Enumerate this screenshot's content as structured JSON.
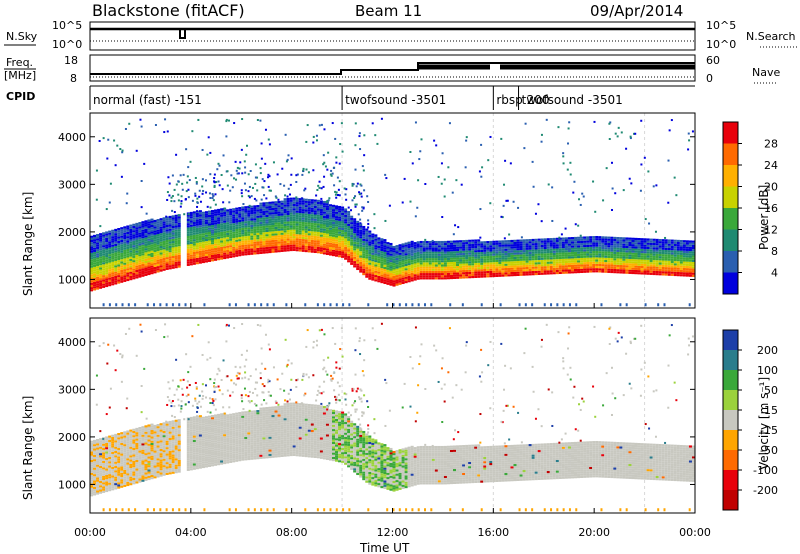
{
  "header": {
    "station": "Blackstone (fitACF)",
    "beam": "Beam 11",
    "date": "09/Apr/2014"
  },
  "strips": {
    "nsky_label": "N.Sky",
    "nsearch_label": "N.Search",
    "noise_ticks": [
      "10^5",
      "10^0"
    ],
    "freq_label_1": "Freq.",
    "freq_label_2": "[MHz]",
    "freq_ticks": [
      "18",
      "8"
    ],
    "nave_label": "Nave",
    "nave_ticks": [
      "60",
      "0"
    ],
    "cpid_label": "CPID"
  },
  "cpid_segments": [
    {
      "label": "normal (fast) -151",
      "start": 0.0,
      "end": 10.0
    },
    {
      "label": "twofsound -3501",
      "start": 10.0,
      "end": 16.0
    },
    {
      "label": "rbsp 200",
      "start": 16.0,
      "end": 17.0
    },
    {
      "label": "twofsound -3501",
      "start": 17.0,
      "end": 22.0
    }
  ],
  "chart_data": [
    {
      "type": "heatmap",
      "title": "",
      "xlabel": "Time UT",
      "ylabel": "Slant Range [km]",
      "xlim": [
        0,
        24
      ],
      "ylim": [
        400,
        4500
      ],
      "x_ticks": [
        "00:00",
        "04:00",
        "08:00",
        "12:00",
        "16:00",
        "20:00",
        "00:00"
      ],
      "y_ticks": [
        1000,
        2000,
        3000,
        4000
      ],
      "colorbar": {
        "label": "Power [dB]",
        "ticks": [
          "28",
          "24",
          "20",
          "16",
          "12",
          "8",
          "4"
        ],
        "colors": [
          "#e8000b",
          "#ff6a00",
          "#ffb000",
          "#c8d200",
          "#3aa83a",
          "#1f8a72",
          "#2a5fb0",
          "#0000dd"
        ]
      },
      "echo_band": {
        "time_h": [
          0,
          1,
          2,
          3,
          4,
          5,
          6,
          7,
          8,
          9,
          10,
          11,
          12,
          13,
          14,
          16,
          18,
          20,
          22,
          24
        ],
        "lower_edge_km": [
          750,
          900,
          1050,
          1200,
          1300,
          1400,
          1500,
          1550,
          1600,
          1550,
          1450,
          1000,
          850,
          1000,
          1000,
          1050,
          1100,
          1150,
          1100,
          1050
        ],
        "upper_edge_km": [
          1900,
          2050,
          2200,
          2300,
          2400,
          2450,
          2500,
          2600,
          2700,
          2650,
          2500,
          2000,
          1700,
          1800,
          1800,
          1800,
          1850,
          1900,
          1850,
          1800
        ]
      }
    },
    {
      "type": "heatmap",
      "title": "",
      "xlabel": "Time UT",
      "ylabel": "Slant Range [km]",
      "xlim": [
        0,
        24
      ],
      "ylim": [
        400,
        4500
      ],
      "x_ticks": [
        "00:00",
        "04:00",
        "08:00",
        "12:00",
        "16:00",
        "20:00",
        "00:00"
      ],
      "y_ticks": [
        1000,
        2000,
        3000,
        4000
      ],
      "colorbar": {
        "label": "Velocity [m s⁻¹]",
        "ticks": [
          "200",
          "100",
          "50",
          "15",
          "-15",
          "-50",
          "-100",
          "-200"
        ],
        "colors": [
          "#1d3fa8",
          "#2a7d8c",
          "#3aa83a",
          "#9bd23c",
          "#c8c8c0",
          "#ffa500",
          "#ff6a00",
          "#e8000b",
          "#c00000"
        ]
      }
    }
  ]
}
